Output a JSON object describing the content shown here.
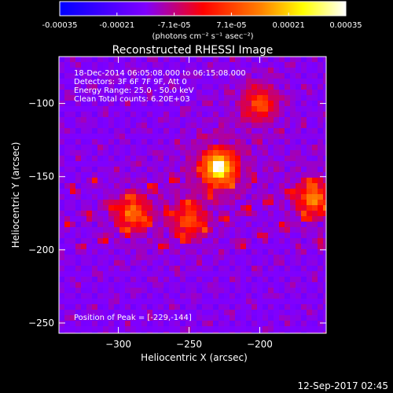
{
  "chart_data": {
    "type": "heatmap",
    "title": "Reconstructed RHESSI Image",
    "xlabel": "Heliocentric X (arcsec)",
    "ylabel": "Heliocentric Y (arcsec)",
    "xlim": [
      -342,
      -153
    ],
    "ylim": [
      -257,
      -68
    ],
    "x_ticks": [
      -300,
      -250,
      -200
    ],
    "y_ticks": [
      -100,
      -150,
      -200,
      -250
    ],
    "colorbar": {
      "label": "(photons cm⁻² s⁻¹ asec⁻²)",
      "range": [
        -0.00035,
        0.00035
      ],
      "ticks": [
        "-0.00035",
        "-0.00021",
        "-7.1e-05",
        "7.1e-05",
        "0.00021",
        "0.00035"
      ],
      "colormap": [
        "#0000ff",
        "#7f00ff",
        "#ff0000",
        "#ff7f00",
        "#ffff00",
        "#ffffff"
      ]
    },
    "annotations": [
      "18-Dec-2014 06:05:08.000 to 06:15:08.000",
      "Detectors: 3F 6F 7F 9F, Att 0",
      "Energy Range: 25.0 - 50.0 keV",
      "Clean     Total counts: 6.20E+03"
    ],
    "peak_label": "Position of Peak = [-229,-144]",
    "peak": {
      "x": -229,
      "y": -144
    },
    "sources": [
      {
        "x": -229,
        "y": -144,
        "strength": 1.0
      },
      {
        "x": -290,
        "y": -175,
        "strength": 0.55
      },
      {
        "x": -162,
        "y": -165,
        "strength": 0.6
      },
      {
        "x": -250,
        "y": -180,
        "strength": 0.45
      },
      {
        "x": -200,
        "y": -100,
        "strength": 0.45
      }
    ]
  },
  "footer": {
    "timestamp": "12-Sep-2017 02:45"
  }
}
